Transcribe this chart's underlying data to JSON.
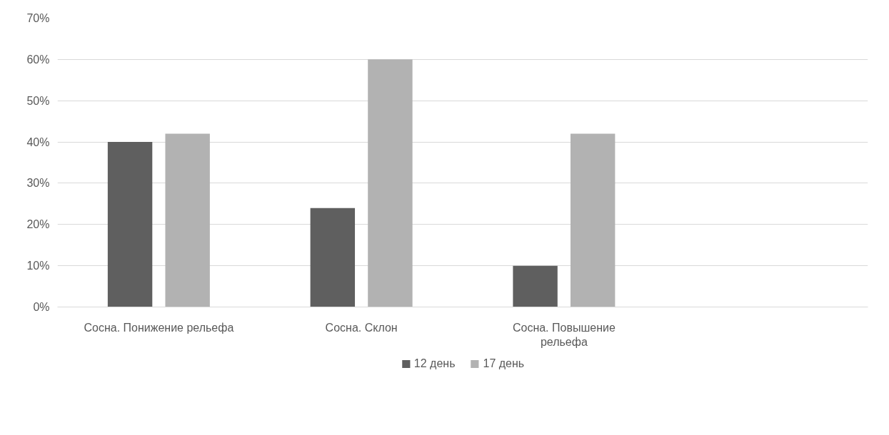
{
  "chart_data": {
    "type": "bar",
    "categories": [
      "Сосна. Понижение рельефа",
      "Сосна. Склон",
      "Сосна. Повышение\nрельефа",
      null
    ],
    "series": [
      {
        "name": "12 день",
        "color": "#5f5f5f",
        "values": [
          40,
          24,
          10,
          null
        ]
      },
      {
        "name": "17 день",
        "color": "#b2b2b2",
        "values": [
          42,
          60,
          42,
          null
        ]
      }
    ],
    "ylim": [
      0,
      70
    ],
    "yticks": [
      {
        "value": 0,
        "label": "0%"
      },
      {
        "value": 10,
        "label": "10%"
      },
      {
        "value": 20,
        "label": "20%"
      },
      {
        "value": 30,
        "label": "30%"
      },
      {
        "value": 40,
        "label": "40%"
      },
      {
        "value": 50,
        "label": "50%"
      },
      {
        "value": 60,
        "label": "60%"
      },
      {
        "value": 70,
        "label": "70%"
      }
    ],
    "grid": "y",
    "legend": "bottom"
  }
}
